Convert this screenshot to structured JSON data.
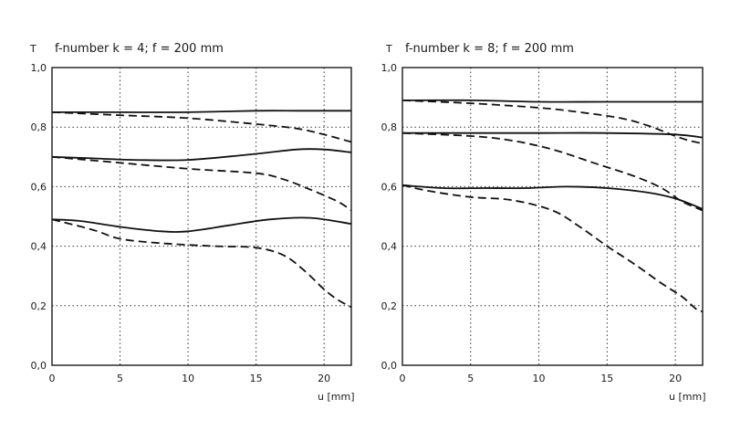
{
  "chart_data": [
    {
      "type": "line",
      "title": "f-number k = 4; f = 200 mm",
      "ylabel": "T",
      "xlabel": "u [mm]",
      "xlim": [
        0,
        22
      ],
      "ylim": [
        0,
        1.0
      ],
      "xticks": [
        0,
        5,
        10,
        15,
        20
      ],
      "xtick_labels": [
        "0",
        "5",
        "10",
        "15",
        "20"
      ],
      "yticks": [
        0,
        0.2,
        0.4,
        0.6,
        0.8,
        1.0
      ],
      "ytick_labels": [
        "0,0",
        "0,2",
        "0,4",
        "0,6",
        "0,8",
        "1,0"
      ],
      "grid": true,
      "series": [
        {
          "style": "solid",
          "x": [
            0,
            5,
            10,
            15,
            18,
            20,
            22
          ],
          "y": [
            0.85,
            0.85,
            0.85,
            0.855,
            0.855,
            0.855,
            0.855
          ]
        },
        {
          "style": "dashed",
          "x": [
            0,
            5,
            10,
            15,
            18,
            20,
            22
          ],
          "y": [
            0.85,
            0.84,
            0.83,
            0.81,
            0.795,
            0.775,
            0.75
          ]
        },
        {
          "style": "solid",
          "x": [
            0,
            3,
            6,
            10,
            15,
            18,
            20,
            22
          ],
          "y": [
            0.7,
            0.695,
            0.69,
            0.69,
            0.71,
            0.725,
            0.725,
            0.715
          ]
        },
        {
          "style": "dashed",
          "x": [
            0,
            5,
            10,
            15,
            17,
            19,
            21,
            22
          ],
          "y": [
            0.7,
            0.68,
            0.66,
            0.645,
            0.625,
            0.59,
            0.55,
            0.52
          ]
        },
        {
          "style": "solid",
          "x": [
            0,
            2,
            5,
            8,
            10,
            13,
            16,
            19,
            22
          ],
          "y": [
            0.49,
            0.485,
            0.465,
            0.45,
            0.45,
            0.47,
            0.49,
            0.495,
            0.475
          ]
        },
        {
          "style": "dashed",
          "x": [
            0,
            3,
            5,
            8,
            12,
            15,
            17,
            18.5,
            20,
            21,
            22
          ],
          "y": [
            0.49,
            0.455,
            0.425,
            0.41,
            0.4,
            0.395,
            0.37,
            0.32,
            0.255,
            0.22,
            0.195
          ]
        }
      ]
    },
    {
      "type": "line",
      "title": "f-number k = 8; f = 200 mm",
      "ylabel": "T",
      "xlabel": "u [mm]",
      "xlim": [
        0,
        22
      ],
      "ylim": [
        0,
        1.0
      ],
      "xticks": [
        0,
        5,
        10,
        15,
        20
      ],
      "xtick_labels": [
        "0",
        "5",
        "10",
        "15",
        "20"
      ],
      "yticks": [
        0,
        0.2,
        0.4,
        0.6,
        0.8,
        1.0
      ],
      "ytick_labels": [
        "0,0",
        "0,2",
        "0,4",
        "0,6",
        "0,8",
        "1,0"
      ],
      "grid": true,
      "series": [
        {
          "style": "solid",
          "x": [
            0,
            5,
            10,
            15,
            20,
            22
          ],
          "y": [
            0.89,
            0.89,
            0.885,
            0.885,
            0.885,
            0.885
          ]
        },
        {
          "style": "dashed",
          "x": [
            0,
            5,
            10,
            13,
            16,
            18,
            20,
            21,
            22
          ],
          "y": [
            0.89,
            0.88,
            0.865,
            0.85,
            0.83,
            0.805,
            0.77,
            0.755,
            0.745
          ]
        },
        {
          "style": "solid",
          "x": [
            0,
            5,
            10,
            15,
            20,
            22
          ],
          "y": [
            0.78,
            0.78,
            0.78,
            0.78,
            0.775,
            0.765
          ]
        },
        {
          "style": "dashed",
          "x": [
            0,
            5,
            8,
            11,
            14,
            17,
            19,
            20.5,
            22
          ],
          "y": [
            0.78,
            0.77,
            0.755,
            0.725,
            0.68,
            0.635,
            0.595,
            0.55,
            0.52
          ]
        },
        {
          "style": "solid",
          "x": [
            0,
            3,
            6,
            9,
            12,
            15,
            18,
            20,
            22
          ],
          "y": [
            0.605,
            0.595,
            0.595,
            0.595,
            0.6,
            0.595,
            0.58,
            0.56,
            0.525
          ]
        },
        {
          "style": "dashed",
          "x": [
            0,
            2,
            5,
            8,
            11,
            13,
            15,
            17,
            19,
            20.5,
            21.5,
            22
          ],
          "y": [
            0.605,
            0.585,
            0.565,
            0.555,
            0.52,
            0.465,
            0.4,
            0.34,
            0.275,
            0.23,
            0.19,
            0.18
          ]
        }
      ]
    }
  ]
}
